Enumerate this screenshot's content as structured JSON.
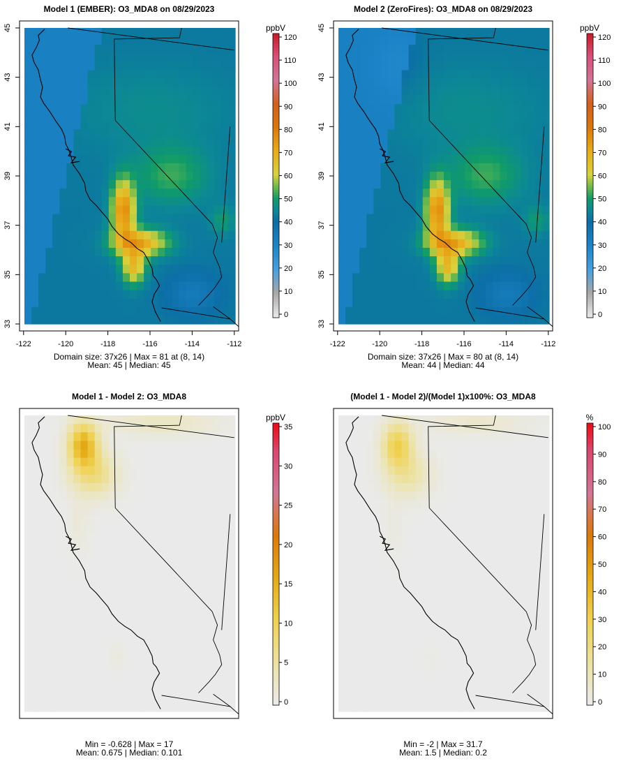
{
  "panels": [
    {
      "id": "p1",
      "title": "Model 1 (EMBER): O3_MDA8 on 08/29/2023",
      "stats_line1": "Domain size: 37x26 | Max = 81 at (8, 14)",
      "stats_line2": "Mean: 45 |  Median: 45",
      "colorbar_unit": "ppbV",
      "colorbar_ticks": [
        "0",
        "10",
        "20",
        "30",
        "40",
        "50",
        "60",
        "70",
        "80",
        "90",
        "100",
        "110",
        "120"
      ],
      "show_axes": true,
      "x_ticks": [
        "-122",
        "-120",
        "-118",
        "-116",
        "-114",
        "-112"
      ],
      "y_ticks": [
        "33",
        "35",
        "37",
        "39",
        "41",
        "43",
        "45"
      ]
    },
    {
      "id": "p2",
      "title": "Model 2 (ZeroFires): O3_MDA8 on 08/29/2023",
      "stats_line1": "Domain size: 37x26 | Max = 80 at (8, 14)",
      "stats_line2": "Mean: 44 |  Median: 44",
      "colorbar_unit": "ppbV",
      "colorbar_ticks": [
        "0",
        "10",
        "20",
        "30",
        "40",
        "50",
        "60",
        "70",
        "80",
        "90",
        "100",
        "110",
        "120"
      ],
      "show_axes": true,
      "x_ticks": [
        "-122",
        "-120",
        "-118",
        "-116",
        "-114",
        "-112"
      ],
      "y_ticks": [
        "33",
        "35",
        "37",
        "39",
        "41",
        "43",
        "45"
      ]
    },
    {
      "id": "p3",
      "title": "Model 1 - Model 2: O3_MDA8",
      "stats_line1": "Min = -0.628 | Max = 17",
      "stats_line2": "Mean: 0.675 |  Median: 0.101",
      "colorbar_unit": "ppbV",
      "colorbar_ticks": [
        "0",
        "5",
        "10",
        "15",
        "20",
        "25",
        "30",
        "35"
      ],
      "show_axes": false
    },
    {
      "id": "p4",
      "title": "(Model 1 - Model 2)/(Model 1)x100%: O3_MDA8",
      "stats_line1": "Min = -2 | Max = 31.7",
      "stats_line2": "Mean: 1.5 |  Median: 0.2",
      "colorbar_unit": "%",
      "colorbar_ticks": [
        "0",
        "10",
        "20",
        "30",
        "40",
        "50",
        "60",
        "70",
        "80",
        "90",
        "100"
      ],
      "show_axes": false
    }
  ],
  "chart_data": [
    {
      "type": "heatmap",
      "title": "Model 1 (EMBER): O3_MDA8 on 08/29/2023",
      "variable": "O3_MDA8",
      "units": "ppbV",
      "domain_size": "37x26",
      "max": 81,
      "max_location": "(8, 14)",
      "mean": 45,
      "median": 45,
      "xlim": [
        -122,
        -112
      ],
      "ylim": [
        33,
        45
      ],
      "colorbar_range": [
        0,
        120
      ],
      "regional_values_ppbv": {
        "pacific_ocean": 32,
        "offshore_north": 30,
        "nw_california_nevada_background": 46,
        "northern_nevada_high": 53,
        "central_valley_peak": 78,
        "la_basin": 72,
        "southeast_desert": 44
      }
    },
    {
      "type": "heatmap",
      "title": "Model 2 (ZeroFires): O3_MDA8 on 08/29/2023",
      "variable": "O3_MDA8",
      "units": "ppbV",
      "domain_size": "37x26",
      "max": 80,
      "max_location": "(8, 14)",
      "mean": 44,
      "median": 44,
      "xlim": [
        -122,
        -112
      ],
      "ylim": [
        33,
        45
      ],
      "colorbar_range": [
        0,
        120
      ],
      "regional_values_ppbv": {
        "pacific_ocean": 32,
        "offshore_north": 30,
        "nw_california_nevada_background": 44,
        "northern_nevada_high": 52,
        "central_valley_peak": 77,
        "la_basin": 72,
        "southeast_desert": 44
      }
    },
    {
      "type": "heatmap",
      "title": "Model 1 - Model 2: O3_MDA8",
      "variable": "O3_MDA8",
      "units": "ppbV",
      "min": -0.628,
      "max": 17,
      "mean": 0.675,
      "median": 0.101,
      "colorbar_range": [
        0,
        35
      ],
      "regional_values_ppbv": {
        "nw_california_max": 15,
        "north_coast": 8,
        "oregon_border_east": 3,
        "rest_of_domain": 0
      }
    },
    {
      "type": "heatmap",
      "title": "(Model 1 - Model 2)/(Model 1)x100%: O3_MDA8",
      "variable": "O3_MDA8",
      "units": "%",
      "min": -2,
      "max": 31.7,
      "mean": 1.5,
      "median": 0.2,
      "colorbar_range": [
        0,
        100
      ],
      "regional_values_percent": {
        "nw_california_max": 30,
        "north_coast": 18,
        "oregon_border_east": 6,
        "rest_of_domain": 0
      }
    }
  ]
}
